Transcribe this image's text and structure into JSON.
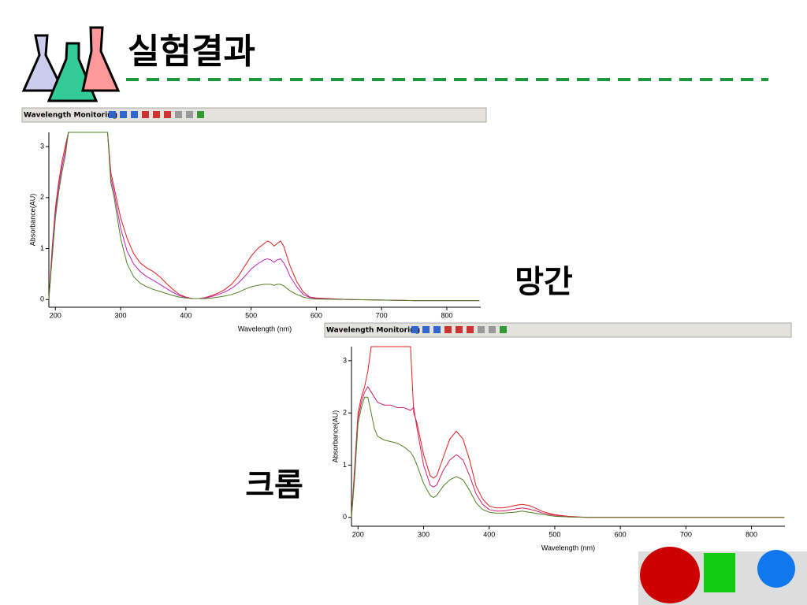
{
  "title": "실험결과",
  "chart_data": [
    {
      "type": "line",
      "toolbar": "Wavelength Monitoring",
      "label": "망간",
      "x_label": "Wavelength (nm)",
      "y_label": "Absorbance(AU)",
      "xlim": [
        190,
        852
      ],
      "ylim": [
        -0.15,
        3.28
      ],
      "xticks": [
        200,
        300,
        400,
        500,
        600,
        700,
        800
      ],
      "yticks": [
        0,
        1,
        2,
        3
      ],
      "x": [
        190,
        195,
        200,
        205,
        210,
        215,
        220,
        230,
        240,
        250,
        260,
        270,
        280,
        285,
        290,
        300,
        310,
        320,
        330,
        340,
        350,
        360,
        370,
        380,
        390,
        400,
        410,
        420,
        430,
        440,
        450,
        460,
        470,
        480,
        490,
        500,
        510,
        520,
        525,
        530,
        535,
        540,
        545,
        550,
        555,
        560,
        570,
        580,
        590,
        600,
        650,
        700,
        750,
        800,
        850
      ],
      "series": [
        {
          "color": "#e02020",
          "values": [
            0,
            1.0,
            1.8,
            2.3,
            2.7,
            3.0,
            3.28,
            3.28,
            3.28,
            3.28,
            3.28,
            3.28,
            3.28,
            2.5,
            2.2,
            1.6,
            1.2,
            0.9,
            0.72,
            0.62,
            0.55,
            0.45,
            0.32,
            0.2,
            0.1,
            0.05,
            0.02,
            0.02,
            0.04,
            0.08,
            0.13,
            0.2,
            0.3,
            0.45,
            0.65,
            0.85,
            1.0,
            1.1,
            1.15,
            1.12,
            1.05,
            1.1,
            1.15,
            1.05,
            0.85,
            0.65,
            0.35,
            0.15,
            0.05,
            0.03,
            0,
            -0.01,
            -0.02,
            -0.02,
            -0.02
          ]
        },
        {
          "color": "#c020c0",
          "values": [
            0,
            0.9,
            1.7,
            2.2,
            2.6,
            2.9,
            3.28,
            3.28,
            3.28,
            3.28,
            3.28,
            3.28,
            3.28,
            2.4,
            2.1,
            1.4,
            0.95,
            0.7,
            0.55,
            0.45,
            0.38,
            0.3,
            0.22,
            0.14,
            0.08,
            0.04,
            0.02,
            0.02,
            0.03,
            0.06,
            0.1,
            0.15,
            0.22,
            0.32,
            0.45,
            0.6,
            0.7,
            0.78,
            0.8,
            0.78,
            0.73,
            0.78,
            0.8,
            0.72,
            0.6,
            0.45,
            0.25,
            0.1,
            0.04,
            0.02,
            0,
            -0.01,
            -0.02,
            -0.02,
            -0.02
          ]
        },
        {
          "color": "#508020",
          "values": [
            0,
            0.8,
            1.6,
            2.1,
            2.5,
            2.8,
            3.28,
            3.28,
            3.28,
            3.28,
            3.28,
            3.28,
            3.28,
            2.3,
            2.0,
            1.2,
            0.7,
            0.45,
            0.32,
            0.25,
            0.2,
            0.16,
            0.12,
            0.08,
            0.05,
            0.03,
            0.02,
            0.02,
            0.02,
            0.03,
            0.05,
            0.07,
            0.1,
            0.14,
            0.2,
            0.25,
            0.28,
            0.3,
            0.3,
            0.3,
            0.28,
            0.3,
            0.3,
            0.27,
            0.22,
            0.17,
            0.1,
            0.05,
            0.02,
            0.01,
            0,
            -0.01,
            -0.02,
            -0.02,
            -0.02
          ]
        }
      ]
    },
    {
      "type": "line",
      "toolbar": "Wavelength Monitoring",
      "label": "크롬",
      "x_label": "Wavelength (nm)",
      "y_label": "Absorbance(AU)",
      "xlim": [
        190,
        851
      ],
      "ylim": [
        -0.17,
        3.27
      ],
      "xticks": [
        200,
        300,
        400,
        500,
        600,
        700,
        800
      ],
      "yticks": [
        0,
        1,
        2,
        3
      ],
      "x": [
        190,
        195,
        200,
        205,
        210,
        215,
        220,
        225,
        230,
        240,
        250,
        260,
        270,
        280,
        285,
        290,
        300,
        310,
        315,
        320,
        330,
        340,
        350,
        360,
        370,
        380,
        390,
        400,
        410,
        420,
        430,
        440,
        450,
        460,
        470,
        480,
        490,
        500,
        520,
        550,
        600,
        700,
        800,
        850
      ],
      "series": [
        {
          "color": "#e02020",
          "values": [
            0,
            1.0,
            2.0,
            2.3,
            2.5,
            2.8,
            3.27,
            3.27,
            3.27,
            3.27,
            3.27,
            3.27,
            3.27,
            3.27,
            2.0,
            1.8,
            1.2,
            0.8,
            0.75,
            0.8,
            1.15,
            1.5,
            1.65,
            1.5,
            1.1,
            0.6,
            0.35,
            0.22,
            0.18,
            0.18,
            0.2,
            0.23,
            0.25,
            0.23,
            0.18,
            0.12,
            0.08,
            0.05,
            0.02,
            0,
            0,
            0,
            0,
            0
          ]
        },
        {
          "color": "#d0206a",
          "values": [
            0,
            0.9,
            1.9,
            2.2,
            2.4,
            2.5,
            2.4,
            2.3,
            2.2,
            2.15,
            2.15,
            2.1,
            2.1,
            2.05,
            2.1,
            1.7,
            1.0,
            0.62,
            0.58,
            0.62,
            0.9,
            1.1,
            1.2,
            1.1,
            0.8,
            0.45,
            0.25,
            0.15,
            0.12,
            0.12,
            0.14,
            0.16,
            0.18,
            0.16,
            0.13,
            0.09,
            0.06,
            0.04,
            0.01,
            0,
            0,
            0,
            0,
            0
          ]
        },
        {
          "color": "#508020",
          "values": [
            0,
            0.8,
            1.8,
            2.1,
            2.3,
            2.3,
            2.0,
            1.7,
            1.55,
            1.48,
            1.45,
            1.42,
            1.35,
            1.25,
            1.15,
            1.0,
            0.65,
            0.42,
            0.38,
            0.42,
            0.6,
            0.72,
            0.78,
            0.72,
            0.52,
            0.28,
            0.15,
            0.1,
            0.08,
            0.08,
            0.09,
            0.1,
            0.12,
            0.1,
            0.08,
            0.06,
            0.04,
            0.02,
            0.01,
            0,
            0,
            0,
            0,
            0
          ]
        }
      ]
    }
  ]
}
